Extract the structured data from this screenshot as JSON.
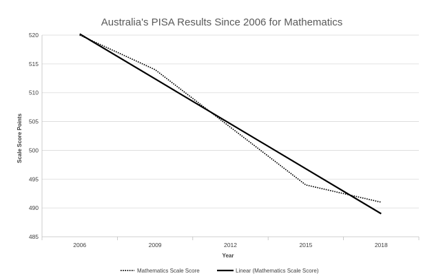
{
  "chart_data": {
    "type": "line",
    "title": "Australia's PISA Results Since 2006 for Mathematics",
    "xlabel": "Year",
    "ylabel": "Scale Score Points",
    "categories": [
      "2006",
      "2009",
      "2012",
      "2015",
      "2018"
    ],
    "ylim": [
      485,
      520
    ],
    "yticks": [
      485,
      490,
      495,
      500,
      505,
      510,
      515,
      520
    ],
    "grid": true,
    "legend_position": "bottom",
    "series": [
      {
        "name": "Mathematics Scale Score",
        "values": [
          520,
          514,
          504,
          494,
          491
        ],
        "color": "#000000",
        "style": "dotted"
      },
      {
        "name": "Linear (Mathematics Scale Score)",
        "values": [
          520.2,
          512.4,
          504.6,
          496.8,
          489.0
        ],
        "color": "#000000",
        "style": "solid"
      }
    ]
  }
}
